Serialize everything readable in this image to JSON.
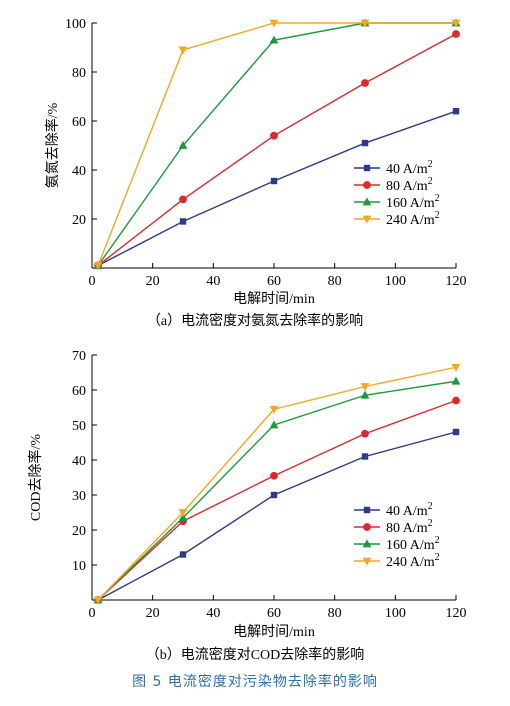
{
  "figure_caption": "图 5   电流密度对污染物去除率的影响",
  "colors": {
    "s40": "#2b3a8f",
    "s80": "#e0282a",
    "s160": "#1a9a3a",
    "s240": "#f5a623"
  },
  "chart_data": [
    {
      "type": "line",
      "panel": "a",
      "caption": "（a）电流密度对氨氮去除率的影响",
      "xlabel": "电解时间/min",
      "ylabel": "氨氮去除率/%",
      "xlim": [
        0,
        120
      ],
      "ylim": [
        0,
        100
      ],
      "xticks": [
        0,
        20,
        40,
        60,
        80,
        100,
        120
      ],
      "yticks": [
        20,
        40,
        60,
        80,
        100
      ],
      "grid": false,
      "legend_position": "right-center",
      "x": [
        2,
        30,
        60,
        90,
        120
      ],
      "series": [
        {
          "name": "40 A/m²",
          "marker": "square",
          "color": "#2b3a8f",
          "values": [
            1,
            19,
            35.5,
            51,
            64
          ]
        },
        {
          "name": "80 A/m²",
          "marker": "circle",
          "color": "#e0282a",
          "values": [
            1,
            28,
            54,
            75.5,
            95.5
          ]
        },
        {
          "name": "160 A/m²",
          "marker": "triangle-up",
          "color": "#1a9a3a",
          "values": [
            1,
            50,
            93,
            100,
            100
          ]
        },
        {
          "name": "240 A/m²",
          "marker": "triangle-down",
          "color": "#f5a623",
          "values": [
            1,
            89,
            100,
            100,
            100
          ]
        }
      ]
    },
    {
      "type": "line",
      "panel": "b",
      "caption": "（b）电流密度对COD去除率的影响",
      "xlabel": "电解时间/min",
      "ylabel": "COD去除率/%",
      "xlim": [
        0,
        120
      ],
      "ylim": [
        0,
        70
      ],
      "xticks": [
        0,
        20,
        40,
        60,
        80,
        100,
        120
      ],
      "yticks": [
        10,
        20,
        30,
        40,
        50,
        60,
        70
      ],
      "grid": false,
      "legend_position": "bottom-right",
      "x": [
        2,
        30,
        60,
        90,
        120
      ],
      "series": [
        {
          "name": "40 A/m²",
          "marker": "square",
          "color": "#2b3a8f",
          "values": [
            0,
            13,
            30,
            41,
            48
          ]
        },
        {
          "name": "80 A/m²",
          "marker": "circle",
          "color": "#e0282a",
          "values": [
            0,
            22.5,
            35.5,
            47.5,
            57
          ]
        },
        {
          "name": "160 A/m²",
          "marker": "triangle-up",
          "color": "#1a9a3a",
          "values": [
            0,
            23.5,
            50,
            58.5,
            62.5
          ]
        },
        {
          "name": "240 A/m²",
          "marker": "triangle-down",
          "color": "#f5a623",
          "values": [
            0,
            25,
            54.5,
            61,
            66.5
          ]
        }
      ]
    }
  ]
}
